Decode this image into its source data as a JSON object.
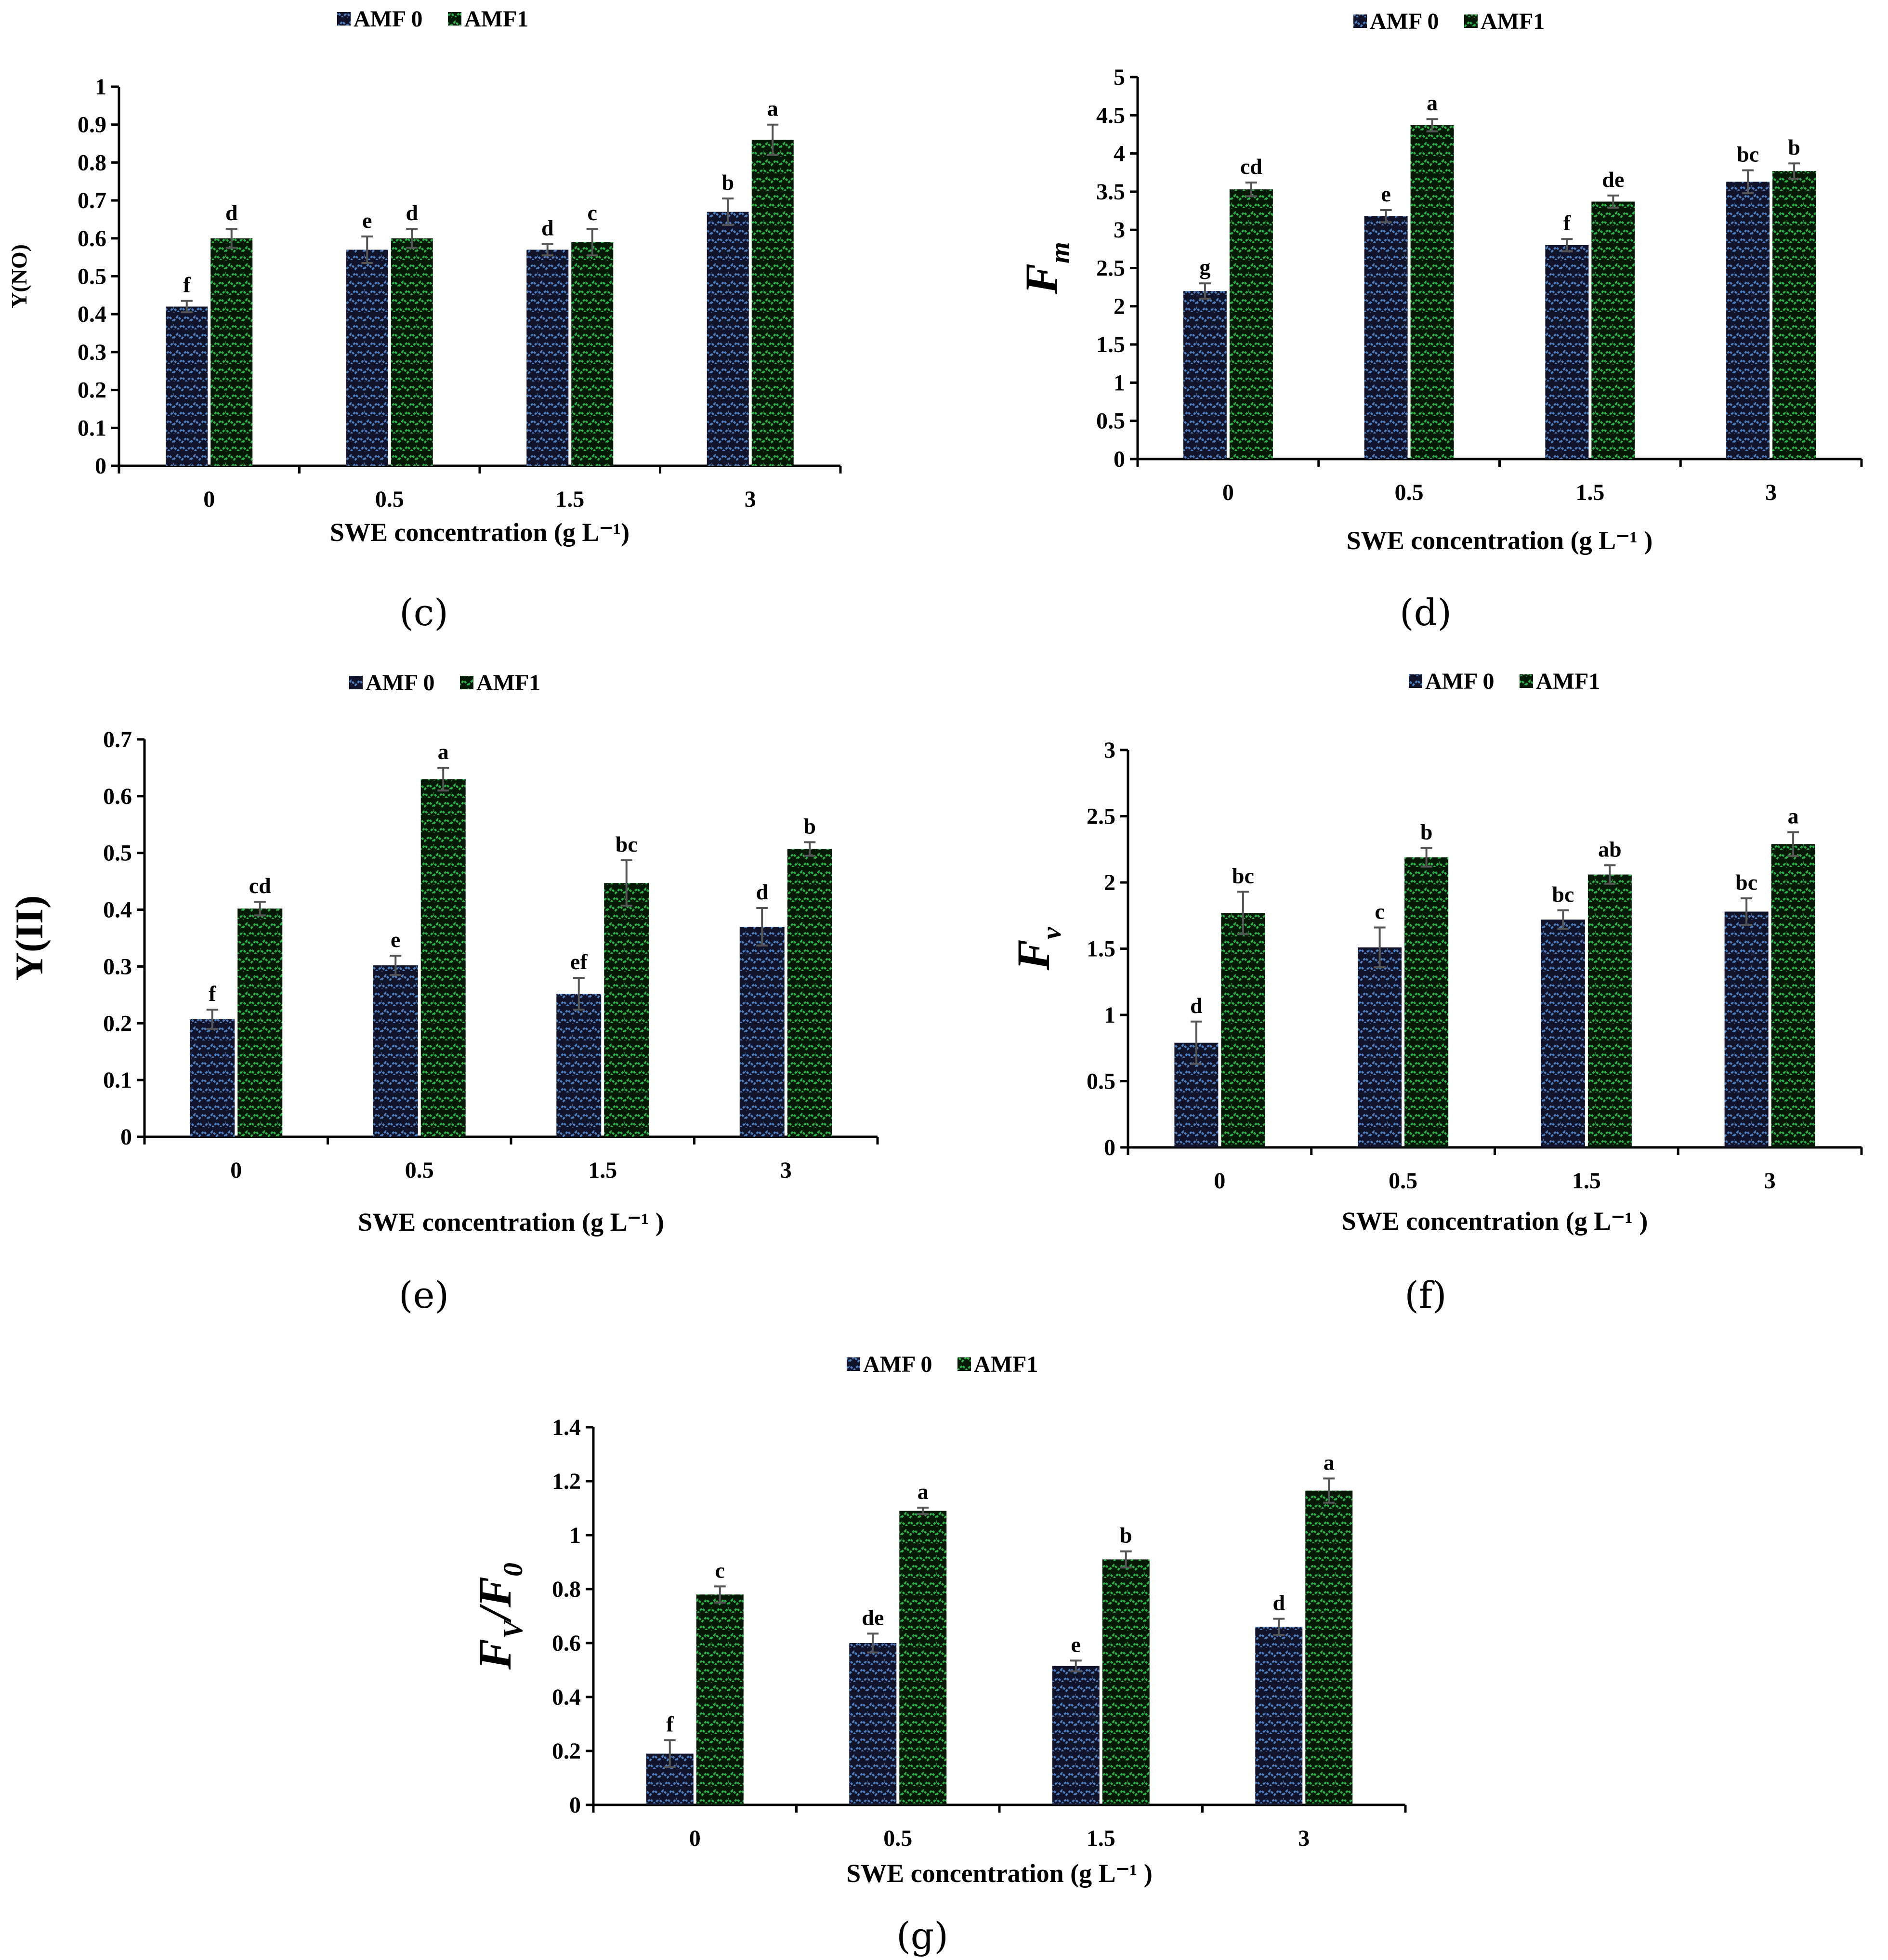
{
  "colors": {
    "amf0_base": "#10132a",
    "amf0_pattern": "#4f7fbf",
    "amf1_base": "#061806",
    "amf1_pattern": "#2fb24a",
    "axis": "#000000",
    "error": "#555555"
  },
  "chart_data": [
    {
      "id": "c",
      "type": "bar",
      "panel_label": "(c)",
      "ylabel": "Y(NO)",
      "xlabel_main": "SWE concentration",
      "xlabel_units": "(g L⁻¹)",
      "legend": [
        "AMF 0",
        "AMF1"
      ],
      "categories": [
        "0",
        "0.5",
        "1.5",
        "3"
      ],
      "yticks": [
        "0",
        "0.1",
        "0.2",
        "0.3",
        "0.4",
        "0.5",
        "0.6",
        "0.7",
        "0.8",
        "0.9",
        "1"
      ],
      "ylim": [
        0,
        1
      ],
      "series": [
        {
          "name": "AMF 0",
          "values": [
            0.42,
            0.57,
            0.57,
            0.67
          ],
          "errors": [
            0.015,
            0.035,
            0.015,
            0.035
          ],
          "letters": [
            "f",
            "e",
            "d",
            "b"
          ]
        },
        {
          "name": "AMF1",
          "values": [
            0.6,
            0.6,
            0.59,
            0.86
          ],
          "errors": [
            0.025,
            0.025,
            0.035,
            0.04
          ],
          "letters": [
            "d",
            "d",
            "c",
            "a"
          ]
        }
      ]
    },
    {
      "id": "d",
      "type": "bar",
      "panel_label": "(d)",
      "ylabel": "F",
      "ylabel_sub": "m",
      "xlabel_main": "SWE concentration",
      "xlabel_units": "(g L⁻¹ )",
      "legend": [
        "AMF 0",
        "AMF1"
      ],
      "categories": [
        "0",
        "0.5",
        "1.5",
        "3"
      ],
      "yticks": [
        "0",
        "0.5",
        "1",
        "1.5",
        "2",
        "2.5",
        "3",
        "3.5",
        "4",
        "4.5",
        "5"
      ],
      "ylim": [
        0,
        5
      ],
      "series": [
        {
          "name": "AMF 0",
          "values": [
            2.2,
            3.18,
            2.8,
            3.63
          ],
          "errors": [
            0.1,
            0.08,
            0.08,
            0.15
          ],
          "letters": [
            "g",
            "e",
            "f",
            "bc"
          ]
        },
        {
          "name": "AMF1",
          "values": [
            3.53,
            4.37,
            3.37,
            3.77
          ],
          "errors": [
            0.09,
            0.08,
            0.08,
            0.1
          ],
          "letters": [
            "cd",
            "a",
            "de",
            "b"
          ]
        }
      ]
    },
    {
      "id": "e",
      "type": "bar",
      "panel_label": "(e)",
      "ylabel": "Y(II)",
      "xlabel_main": "SWE concentration",
      "xlabel_units": "(g L⁻¹ )",
      "legend": [
        "AMF 0",
        "AMF1"
      ],
      "categories": [
        "0",
        "0.5",
        "1.5",
        "3"
      ],
      "yticks": [
        "0",
        "0.1",
        "0.2",
        "0.3",
        "0.4",
        "0.5",
        "0.6",
        "0.7"
      ],
      "ylim": [
        0,
        0.7
      ],
      "series": [
        {
          "name": "AMF 0",
          "values": [
            0.207,
            0.302,
            0.252,
            0.37
          ],
          "errors": [
            0.017,
            0.017,
            0.028,
            0.033
          ],
          "letters": [
            "f",
            "e",
            "ef",
            "d"
          ]
        },
        {
          "name": "AMF1",
          "values": [
            0.402,
            0.63,
            0.447,
            0.507
          ],
          "errors": [
            0.012,
            0.02,
            0.04,
            0.012
          ],
          "letters": [
            "cd",
            "a",
            "bc",
            "b"
          ]
        }
      ]
    },
    {
      "id": "f",
      "type": "bar",
      "panel_label": "(f)",
      "ylabel": "F",
      "ylabel_sub": "v",
      "xlabel_main": "SWE concentration",
      "xlabel_units": "(g L⁻¹ )",
      "legend": [
        "AMF 0",
        "AMF1"
      ],
      "categories": [
        "0",
        "0.5",
        "1.5",
        "3"
      ],
      "yticks": [
        "0",
        "0.5",
        "1",
        "1.5",
        "2",
        "2.5",
        "3"
      ],
      "ylim": [
        0,
        3
      ],
      "series": [
        {
          "name": "AMF 0",
          "values": [
            0.79,
            1.51,
            1.72,
            1.78
          ],
          "errors": [
            0.16,
            0.15,
            0.07,
            0.1
          ],
          "letters": [
            "d",
            "c",
            "bc",
            "bc"
          ]
        },
        {
          "name": "AMF1",
          "values": [
            1.77,
            2.19,
            2.06,
            2.29
          ],
          "errors": [
            0.16,
            0.07,
            0.07,
            0.09
          ],
          "letters": [
            "bc",
            "b",
            "ab",
            "a"
          ]
        }
      ]
    },
    {
      "id": "g",
      "type": "bar",
      "panel_label": "(g)",
      "ylabel": "F",
      "ylabel_sub": "V",
      "ylabel_tail": "/F",
      "ylabel_sub2": "0",
      "xlabel_main": "SWE concentration",
      "xlabel_units": "(g L⁻¹ )",
      "legend": [
        "AMF 0",
        "AMF1"
      ],
      "categories": [
        "0",
        "0.5",
        "1.5",
        "3"
      ],
      "yticks": [
        "0",
        "0.2",
        "0.4",
        "0.6",
        "0.8",
        "1",
        "1.2",
        "1.4"
      ],
      "ylim": [
        0,
        1.4
      ],
      "series": [
        {
          "name": "AMF 0",
          "values": [
            0.19,
            0.6,
            0.515,
            0.66
          ],
          "errors": [
            0.05,
            0.035,
            0.02,
            0.03
          ],
          "letters": [
            "f",
            "de",
            "e",
            "d"
          ]
        },
        {
          "name": "AMF1",
          "values": [
            0.78,
            1.09,
            0.91,
            1.165
          ],
          "errors": [
            0.03,
            0.012,
            0.03,
            0.045
          ],
          "letters": [
            "c",
            "a",
            "b",
            "a"
          ]
        }
      ]
    }
  ]
}
